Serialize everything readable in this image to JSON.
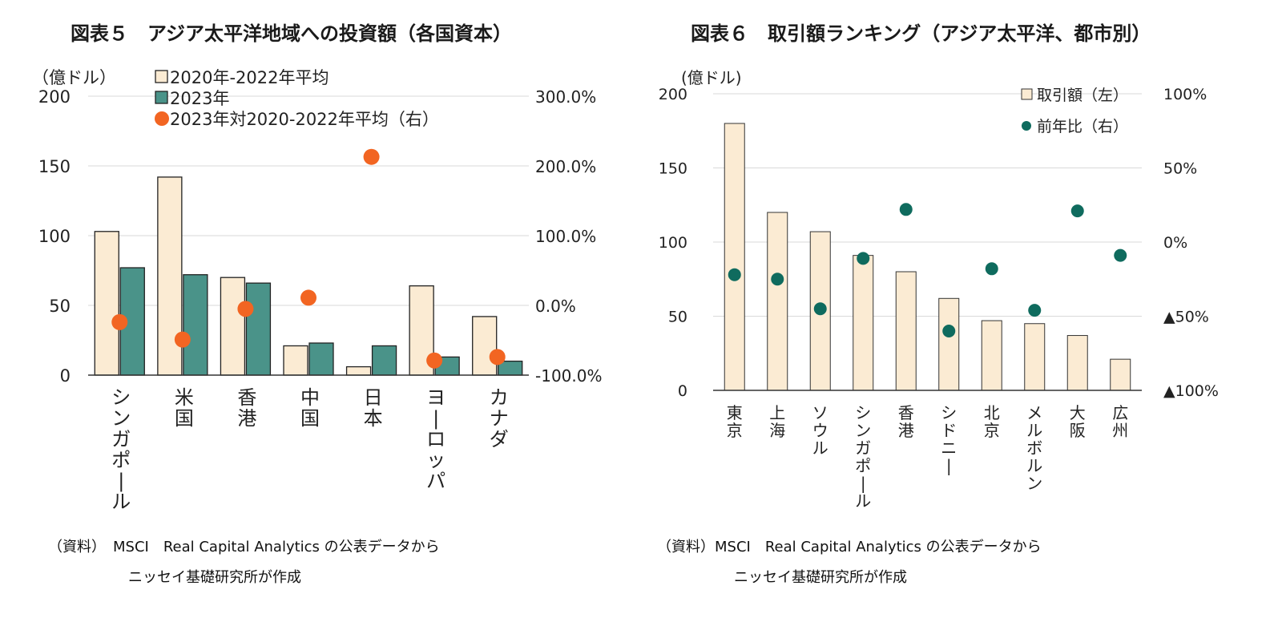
{
  "figure5": {
    "title": "図表５　アジア太平洋地域への投資額（各国資本）",
    "source_line1": "（資料）　MSCI　Real Capital Analytics の公表データから",
    "source_line2": "ニッセイ基礎研究所が作成",
    "colors": {
      "bar_prev": "#fbebd3",
      "bar_2023": "#4a9389",
      "dot": "#f26522",
      "axis": "#333333",
      "grid": "#d9d9d9"
    },
    "chart_data": {
      "type": "bar",
      "y_unit_label": "（億ドル）",
      "ylim": [
        0,
        200
      ],
      "yticks": [
        0,
        50,
        100,
        150,
        200
      ],
      "y2lim": [
        -100,
        300
      ],
      "y2ticks": [
        "-100.0%",
        "0.0%",
        "100.0%",
        "200.0%",
        "300.0%"
      ],
      "categories": [
        "シンガポール",
        "米国",
        "香港",
        "中国",
        "日本",
        "ヨーロッパ",
        "カナダ"
      ],
      "series": [
        {
          "name": "2020年-2022年平均",
          "kind": "bar",
          "axis": "left",
          "values": [
            103,
            142,
            70,
            21,
            6,
            64,
            42
          ]
        },
        {
          "name": "2023年",
          "kind": "bar",
          "axis": "left",
          "values": [
            77,
            72,
            66,
            23,
            21,
            13,
            10
          ]
        },
        {
          "name": "2023年対2020-2022年平均（右）",
          "kind": "dot",
          "axis": "right",
          "values": [
            -24,
            -49,
            -5,
            11,
            213,
            -79,
            -74
          ]
        }
      ],
      "legend_position": "top-left",
      "grid": true
    }
  },
  "figure6": {
    "title": "図表６　取引額ランキング（アジア太平洋、都市別）",
    "source_line1": "（資料）MSCI　Real Capital Analytics の公表データから",
    "source_line2": "ニッセイ基礎研究所が作成",
    "colors": {
      "bar": "#fbebd3",
      "dot": "#0f6b5e",
      "axis": "#333333",
      "grid": "#d9d9d9"
    },
    "chart_data": {
      "type": "bar",
      "y_unit_label": "(億ドル)",
      "ylim": [
        0,
        200
      ],
      "yticks": [
        0,
        50,
        100,
        150,
        200
      ],
      "y2lim": [
        -100,
        100
      ],
      "y2ticks": [
        "▲100%",
        "▲50%",
        "0%",
        "50%",
        "100%"
      ],
      "categories": [
        "東京",
        "上海",
        "ソウル",
        "シンガポール",
        "香港",
        "シドニー",
        "北京",
        "メルボルン",
        "大阪",
        "広州"
      ],
      "series": [
        {
          "name": "取引額（左）",
          "kind": "bar",
          "axis": "left",
          "values": [
            180,
            120,
            107,
            91,
            80,
            62,
            47,
            45,
            37,
            21
          ]
        },
        {
          "name": "前年比（右）",
          "kind": "dot",
          "axis": "right",
          "values": [
            -22,
            -25,
            -45,
            -11,
            22,
            -60,
            -18,
            -46,
            21,
            -9
          ]
        }
      ],
      "legend_position": "top-right",
      "grid": true
    }
  }
}
